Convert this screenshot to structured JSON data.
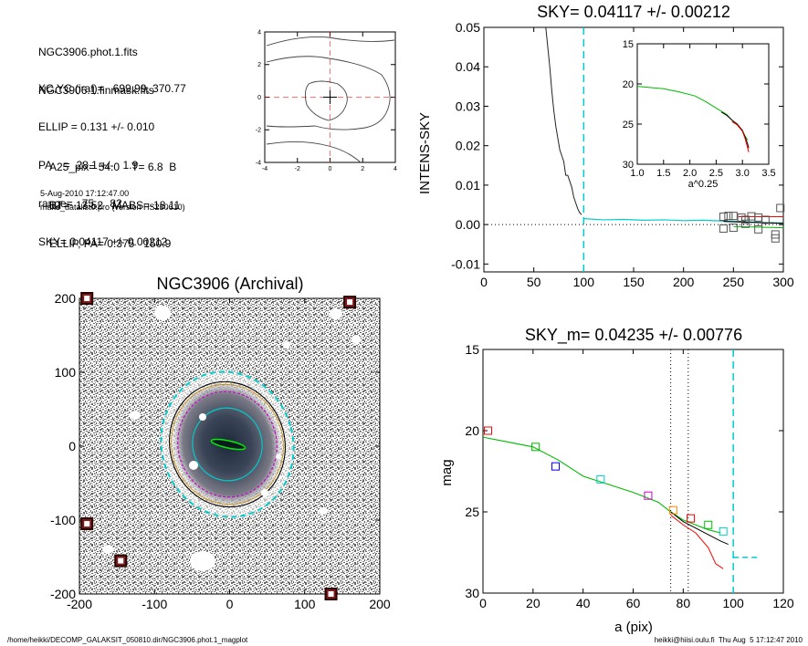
{
  "info_block": {
    "lines1": [
      "NGC3906.phot.1.fits",
      "NGC3906.1.finmask.fits"
    ],
    "lines2": [
      "XC,YC (iraf)=   699.99, 370.77",
      "ELLIP = 0.131 +/- 0.010",
      "PA    =  28.1 +/-   1.9",
      "range=   75.-   82.",
      "SKY= 0.04117 +/- 0.00212"
    ],
    "lines3": [
      "A25_pix= 54.0    T= 6.8  B",
      "BT=  13.52   MABS=-18.11",
      "ELLIP, PA= 0.375   150.9"
    ],
    "date": "5-Aug-2010 17:12:47.00",
    "program": "make_datalist0.pro (version HS230610)"
  },
  "footer": {
    "left": "/home/heikki/DECOMP_GALAKSIT_050810.dir/NGC3906.phot.1_magplot",
    "right": "heikki@hiisi.oulu.fi  Thu Aug  5 17:12:47 2010"
  },
  "colors": {
    "red": "#ff0000",
    "green": "#00bb00",
    "cyan": "#00cccc",
    "blue": "#0000ff",
    "magenta": "#cc00cc",
    "darkred": "#8b0000",
    "orange": "#ff8800"
  },
  "chart_data": [
    {
      "id": "contour",
      "type": "contour",
      "title": "",
      "xlim": [
        -4,
        4
      ],
      "ylim": [
        -4,
        4
      ],
      "xticks": [
        "-4",
        "-2",
        "0",
        "2",
        "4"
      ],
      "yticks": [
        "-4",
        "-2",
        "0",
        "2",
        "4"
      ],
      "cross": [
        0,
        0
      ]
    },
    {
      "id": "sky",
      "type": "line",
      "title": "SKY= 0.04117 +/- 0.00212",
      "xlabel": "",
      "ylabel": "INTENS-SKY",
      "xlim": [
        0,
        300
      ],
      "ylim": [
        -0.012,
        0.05
      ],
      "xticks": [
        "0",
        "50",
        "100",
        "150",
        "200",
        "250",
        "300"
      ],
      "yticks": [
        "-0.01",
        "0.00",
        "0.01",
        "0.02",
        "0.03",
        "0.04",
        "0.05"
      ],
      "vline": 100,
      "profile": {
        "x": [
          62,
          64,
          66,
          68,
          70,
          72,
          74,
          76,
          78,
          80,
          82,
          84,
          86,
          88,
          90,
          92,
          94,
          96,
          98
        ],
        "y": [
          0.05,
          0.045,
          0.04,
          0.034,
          0.029,
          0.025,
          0.022,
          0.019,
          0.0175,
          0.016,
          0.0125,
          0.0125,
          0.011,
          0.0095,
          0.007,
          0.0055,
          0.004,
          0.003,
          0.0025
        ]
      },
      "outer_profile": {
        "x": [
          100,
          120,
          140,
          160,
          180,
          200,
          220,
          240,
          260,
          280,
          300
        ],
        "y": [
          0.0015,
          0.0012,
          0.0013,
          0.0011,
          0.0012,
          0.001,
          0.0011,
          0.0009,
          0.0008,
          0.0005,
          0.0004
        ]
      },
      "squares": {
        "x": [
          240,
          245,
          250,
          258,
          262,
          268,
          275,
          282,
          292,
          297,
          240,
          250,
          262,
          275,
          292
        ],
        "y": [
          0.002,
          0.0022,
          0.0022,
          0.0018,
          0.0012,
          0.0021,
          0.0018,
          0.0012,
          -0.0035,
          0.0042,
          -0.001,
          -0.0008,
          0.0002,
          -0.0012,
          -0.0025
        ]
      },
      "inset": {
        "xlim": [
          1.0,
          3.5
        ],
        "ylim": [
          15,
          30
        ],
        "xticks": [
          "1.0",
          "1.5",
          "2.0",
          "2.5",
          "3.0",
          "3.5"
        ],
        "yticks": [
          "15",
          "20",
          "25",
          "30"
        ],
        "xlabel": "a^0.25",
        "green": {
          "x": [
            1.0,
            1.5,
            1.8,
            2.1,
            2.3,
            2.5,
            2.7,
            2.8,
            2.9,
            3.0,
            3.05,
            3.1
          ],
          "y": [
            20.3,
            20.6,
            21.0,
            21.5,
            22.2,
            23.0,
            23.8,
            24.5,
            25.0,
            25.8,
            26.5,
            27.0
          ]
        },
        "black": {
          "x": [
            2.6,
            2.7,
            2.8,
            2.9,
            3.0,
            3.05,
            3.1,
            3.12
          ],
          "y": [
            23.5,
            23.9,
            24.5,
            25.0,
            25.8,
            26.6,
            27.5,
            28.0
          ]
        },
        "red": {
          "x": [
            2.8,
            2.9,
            3.0,
            3.05,
            3.1,
            3.12
          ],
          "y": [
            24.7,
            25.1,
            25.9,
            26.8,
            28.0,
            28.5
          ]
        }
      }
    },
    {
      "id": "image",
      "type": "image",
      "title": "NGC3906 (Archival)",
      "xlim": [
        -200,
        200
      ],
      "ylim": [
        -200,
        200
      ],
      "xticks": [
        "-200",
        "-100",
        "0",
        "100",
        "200"
      ],
      "yticks": [
        "-200",
        "-100",
        "0",
        "100",
        "200"
      ],
      "markers": {
        "x": [
          -190,
          160,
          -190,
          -145,
          135
        ],
        "y": [
          200,
          195,
          -105,
          -155,
          -200
        ]
      }
    },
    {
      "id": "mag",
      "type": "line",
      "title": "SKY_m=  0.04235 +/- 0.00776",
      "xlabel": "a (pix)",
      "ylabel": "mag",
      "xlim": [
        0,
        120
      ],
      "ylim": [
        15,
        30
      ],
      "xticks": [
        "0",
        "20",
        "40",
        "60",
        "80",
        "100",
        "120"
      ],
      "yticks": [
        "15",
        "20",
        "25",
        "30"
      ],
      "vlines_dotted": [
        75,
        82
      ],
      "vline_dashed": 100,
      "green": {
        "x": [
          0,
          10,
          20,
          30,
          40,
          50,
          60,
          65,
          70,
          75,
          80,
          85,
          90,
          95
        ],
        "y": [
          20.4,
          20.7,
          21.0,
          21.8,
          22.8,
          23.3,
          23.8,
          24.1,
          24.4,
          25.0,
          25.5,
          25.8,
          26.1,
          26.3
        ]
      },
      "black": {
        "x": [
          75,
          80,
          85,
          90,
          95,
          98
        ],
        "y": [
          25.0,
          25.6,
          26.0,
          26.4,
          26.8,
          27.0
        ]
      },
      "red": {
        "x": [
          75,
          80,
          85,
          90,
          93,
          96
        ],
        "y": [
          25.2,
          25.8,
          26.3,
          27.2,
          28.2,
          28.5
        ]
      },
      "cyan_seg": {
        "x": [
          100,
          110
        ],
        "y": [
          27.8,
          27.8
        ]
      },
      "squares": {
        "x": [
          2,
          21,
          29,
          47,
          66,
          76,
          83,
          90,
          96
        ],
        "y": [
          20.0,
          21.0,
          22.2,
          23.0,
          24.0,
          24.9,
          25.4,
          25.8,
          26.2
        ]
      }
    }
  ]
}
